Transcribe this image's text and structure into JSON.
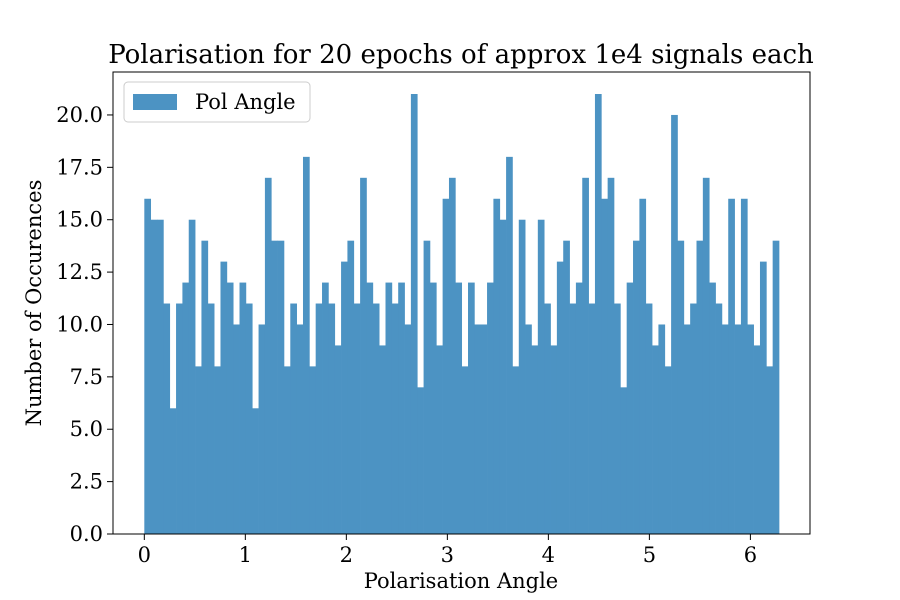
{
  "chart_data": {
    "type": "bar",
    "title": "Polarisation for 20 epochs of approx 1e4 signals each",
    "xlabel": "Polarisation Angle",
    "ylabel": "Number of Occurences",
    "legend": {
      "label": "Pol Angle",
      "position": "top-left"
    },
    "xlim": [
      -0.31,
      6.59
    ],
    "ylim": [
      0,
      22.05
    ],
    "xticks": [
      0,
      1,
      2,
      3,
      4,
      5,
      6
    ],
    "xtick_labels": [
      "0",
      "1",
      "2",
      "3",
      "4",
      "5",
      "6"
    ],
    "yticks": [
      0,
      2.5,
      5,
      7.5,
      10,
      12.5,
      15,
      17.5,
      20
    ],
    "ytick_labels": [
      "0.0",
      "2.5",
      "5.0",
      "7.5",
      "10.0",
      "12.5",
      "15.0",
      "17.5",
      "20.0"
    ],
    "grid": false,
    "bar_color": "#4c93c3",
    "bin_range": [
      0,
      6.2832
    ],
    "counts": [
      16,
      15,
      15,
      11,
      6,
      11,
      12,
      15,
      8,
      14,
      11,
      8,
      13,
      12,
      10,
      12,
      11,
      6,
      10,
      17,
      14,
      14,
      8,
      11,
      10,
      18,
      8,
      11,
      12,
      11,
      9,
      13,
      14,
      11,
      17,
      12,
      11,
      9,
      12,
      11,
      12,
      10,
      21,
      7,
      14,
      12,
      9,
      16,
      17,
      12,
      8,
      12,
      10,
      10,
      12,
      16,
      15,
      18,
      8,
      15,
      10,
      9,
      15,
      11,
      9,
      13,
      14,
      11,
      12,
      17,
      11,
      21,
      16,
      17,
      11,
      7,
      12,
      14,
      16,
      11,
      9,
      10,
      8,
      20,
      14,
      10,
      11,
      14,
      17,
      12,
      11,
      10,
      16,
      10,
      16,
      10,
      9,
      13,
      8,
      14
    ]
  }
}
